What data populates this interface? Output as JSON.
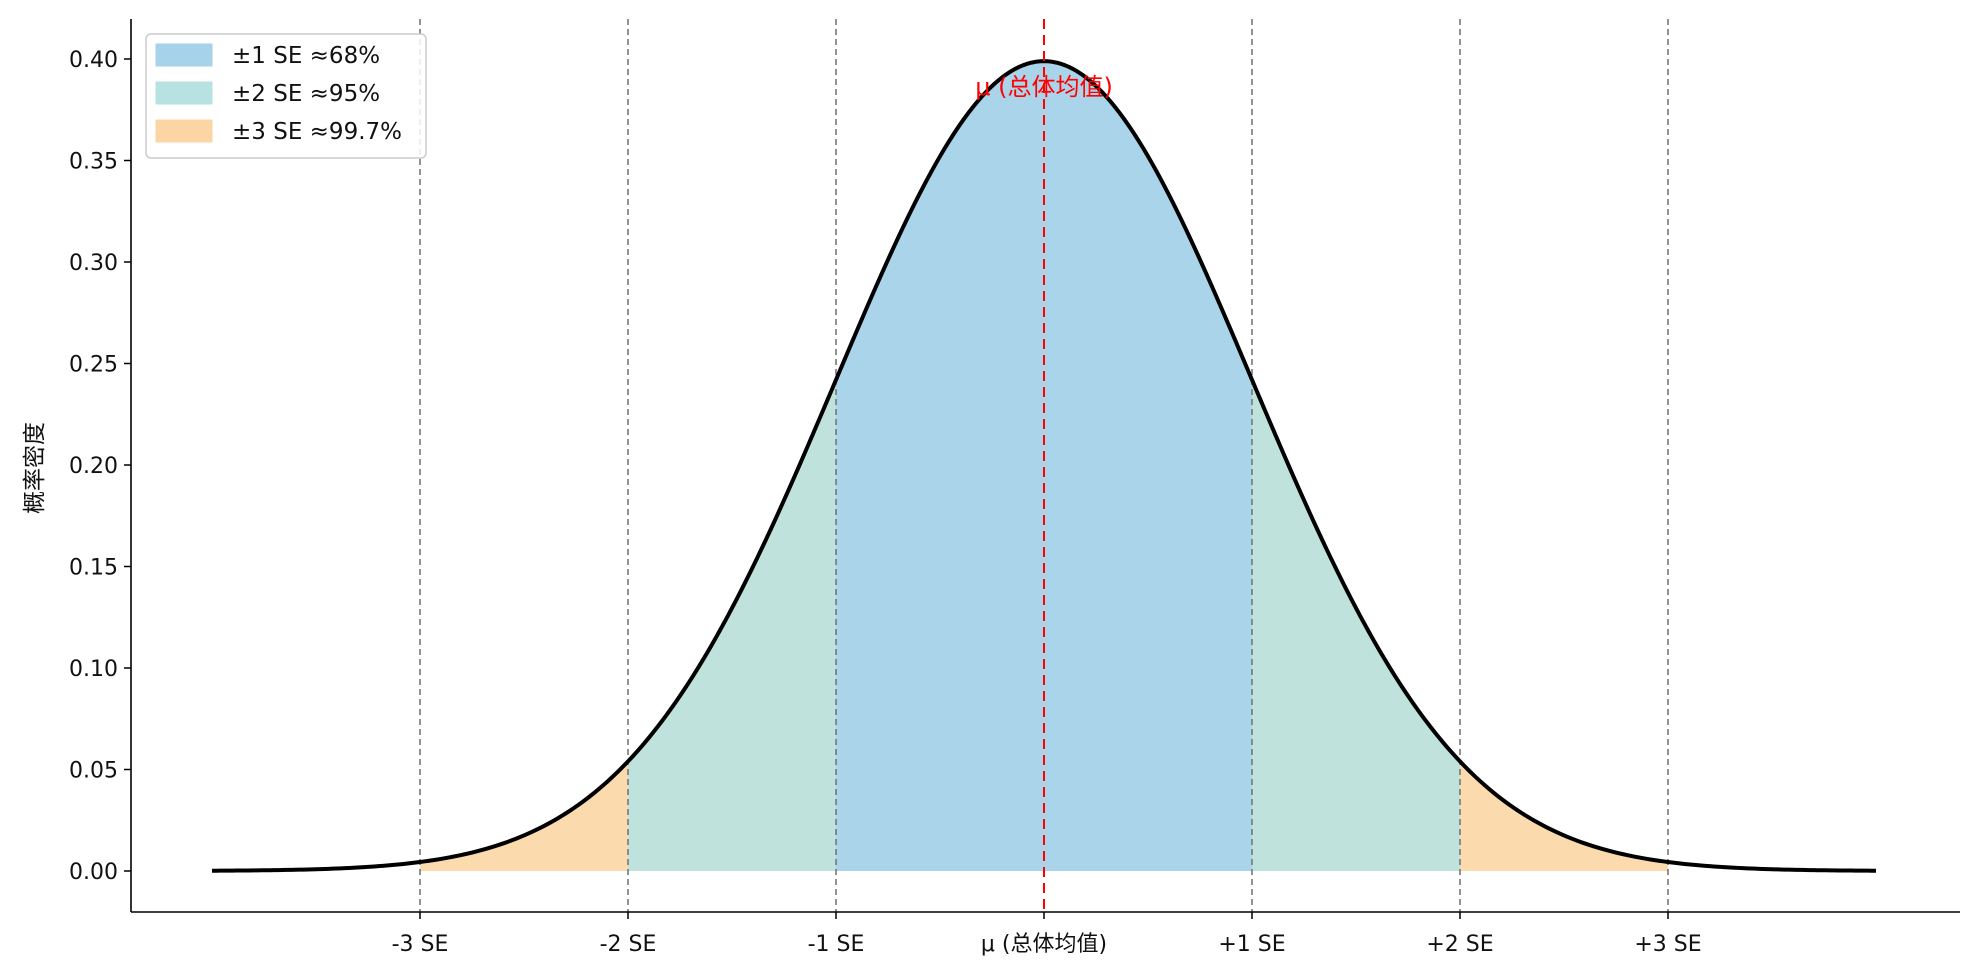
{
  "chart_data": {
    "type": "area",
    "title": "",
    "xlabel": "",
    "ylabel": "概率密度",
    "xlim": [
      -4.0,
      4.0
    ],
    "ylim": [
      -0.02,
      0.42
    ],
    "x_ticks": [
      {
        "x": -3,
        "label": "-3 SE"
      },
      {
        "x": -2,
        "label": "-2 SE"
      },
      {
        "x": -1,
        "label": "-1 SE"
      },
      {
        "x": 0,
        "label": "μ (总体均值)"
      },
      {
        "x": 1,
        "label": "+1 SE"
      },
      {
        "x": 2,
        "label": "+2 SE"
      },
      {
        "x": 3,
        "label": "+3 SE"
      }
    ],
    "y_ticks": [
      "0.00",
      "0.05",
      "0.10",
      "0.15",
      "0.20",
      "0.25",
      "0.30",
      "0.35",
      "0.40"
    ],
    "curve": {
      "distribution": "normal",
      "mean": 0,
      "sd": 1,
      "x_range": [
        -4,
        4
      ],
      "color": "#000000"
    },
    "bands": [
      {
        "name": "±1 SE ≈68%",
        "from": -1,
        "to": 1,
        "color": "#a6d3ea"
      },
      {
        "name": "±2 SE ≈95%",
        "from": -2,
        "to": 2,
        "color": "#b8e2e2"
      },
      {
        "name": "±3 SE ≈99.7%",
        "from": -3,
        "to": 3,
        "color": "#fbd6a4"
      }
    ],
    "vertical_lines": [
      -3,
      -2,
      -1,
      1,
      2,
      3
    ],
    "mean_line": {
      "x": 0,
      "label": "μ (总体均值)",
      "color": "#ff0000"
    },
    "legend_position": "top-left",
    "grid": false
  }
}
